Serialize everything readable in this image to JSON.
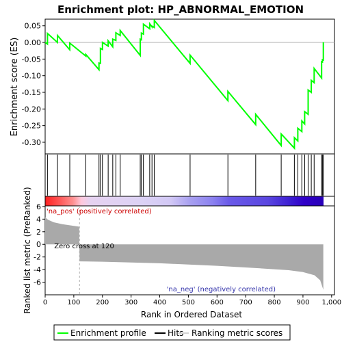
{
  "chart_data": {
    "type": "line",
    "title": "Enrichment plot: HP_ABNORMAL_EMOTION",
    "ylabel_top": "Enrichment score (ES)",
    "ylabel_bottom": "Ranked list metric (PreRanked)",
    "xlabel": "Rank in Ordered Dataset",
    "xlim": [
      0,
      1010
    ],
    "es_ylim": [
      -0.335,
      0.07
    ],
    "metric_ylim": [
      -8,
      6.1
    ],
    "x_ticks": [
      "0",
      "100",
      "200",
      "300",
      "400",
      "500",
      "600",
      "700",
      "800",
      "900",
      "1,000"
    ],
    "x_tick_values": [
      0,
      100,
      200,
      300,
      400,
      500,
      600,
      700,
      800,
      900,
      1000
    ],
    "es_ticks": [
      "0.05",
      "0.00",
      "-0.05",
      "-0.10",
      "-0.15",
      "-0.20",
      "-0.25",
      "-0.30"
    ],
    "es_tick_values": [
      0.05,
      0.0,
      -0.05,
      -0.1,
      -0.15,
      -0.2,
      -0.25,
      -0.3
    ],
    "metric_ticks": [
      "6",
      "4",
      "2",
      "0",
      "-2",
      "-4",
      "-6"
    ],
    "metric_tick_values": [
      6,
      4,
      2,
      0,
      -2,
      -4,
      -6
    ],
    "hits": [
      8,
      43,
      86,
      142,
      188,
      193,
      200,
      220,
      236,
      247,
      262,
      332,
      336,
      343,
      365,
      373,
      381,
      506,
      638,
      735,
      824,
      870,
      882,
      896,
      906,
      918,
      929,
      939,
      965,
      968,
      971
    ],
    "es_profile": [
      {
        "x": 0,
        "es": 0.0
      },
      {
        "x": 8,
        "es": -0.005
      },
      {
        "x": 8,
        "es": 0.027
      },
      {
        "x": 43,
        "es": -0.0
      },
      {
        "x": 43,
        "es": 0.021
      },
      {
        "x": 86,
        "es": -0.022
      },
      {
        "x": 86,
        "es": -0.002
      },
      {
        "x": 142,
        "es": -0.041
      },
      {
        "x": 142,
        "es": -0.036
      },
      {
        "x": 188,
        "es": -0.082
      },
      {
        "x": 188,
        "es": -0.062
      },
      {
        "x": 193,
        "es": -0.063
      },
      {
        "x": 193,
        "es": -0.018
      },
      {
        "x": 200,
        "es": -0.021
      },
      {
        "x": 200,
        "es": 0.0
      },
      {
        "x": 220,
        "es": -0.011
      },
      {
        "x": 220,
        "es": 0.005
      },
      {
        "x": 236,
        "es": -0.013
      },
      {
        "x": 236,
        "es": 0.01
      },
      {
        "x": 247,
        "es": 0.006
      },
      {
        "x": 247,
        "es": 0.029
      },
      {
        "x": 262,
        "es": 0.021
      },
      {
        "x": 262,
        "es": 0.036
      },
      {
        "x": 332,
        "es": -0.039
      },
      {
        "x": 332,
        "es": 0.01
      },
      {
        "x": 336,
        "es": 0.008
      },
      {
        "x": 336,
        "es": 0.028
      },
      {
        "x": 343,
        "es": 0.025
      },
      {
        "x": 343,
        "es": 0.055
      },
      {
        "x": 365,
        "es": 0.041
      },
      {
        "x": 365,
        "es": 0.056
      },
      {
        "x": 373,
        "es": 0.047
      },
      {
        "x": 373,
        "es": 0.049
      },
      {
        "x": 381,
        "es": 0.045
      },
      {
        "x": 381,
        "es": 0.066
      },
      {
        "x": 506,
        "es": -0.063
      },
      {
        "x": 506,
        "es": -0.038
      },
      {
        "x": 638,
        "es": -0.175
      },
      {
        "x": 638,
        "es": -0.147
      },
      {
        "x": 735,
        "es": -0.247
      },
      {
        "x": 735,
        "es": -0.216
      },
      {
        "x": 824,
        "es": -0.31
      },
      {
        "x": 824,
        "es": -0.275
      },
      {
        "x": 870,
        "es": -0.318
      },
      {
        "x": 870,
        "es": -0.286
      },
      {
        "x": 882,
        "es": -0.296
      },
      {
        "x": 882,
        "es": -0.258
      },
      {
        "x": 896,
        "es": -0.268
      },
      {
        "x": 896,
        "es": -0.236
      },
      {
        "x": 906,
        "es": -0.245
      },
      {
        "x": 906,
        "es": -0.208
      },
      {
        "x": 918,
        "es": -0.216
      },
      {
        "x": 918,
        "es": -0.143
      },
      {
        "x": 929,
        "es": -0.15
      },
      {
        "x": 929,
        "es": -0.114
      },
      {
        "x": 939,
        "es": -0.121
      },
      {
        "x": 939,
        "es": -0.078
      },
      {
        "x": 965,
        "es": -0.107
      },
      {
        "x": 965,
        "es": -0.058
      },
      {
        "x": 968,
        "es": -0.059
      },
      {
        "x": 968,
        "es": -0.052
      },
      {
        "x": 971,
        "es": -0.053
      },
      {
        "x": 971,
        "es": 0.001
      }
    ],
    "metric_curve": [
      {
        "x": 0,
        "v": 4.3
      },
      {
        "x": 10,
        "v": 3.9
      },
      {
        "x": 30,
        "v": 3.5
      },
      {
        "x": 60,
        "v": 3.2
      },
      {
        "x": 90,
        "v": 3.0
      },
      {
        "x": 119,
        "v": 2.8
      },
      {
        "x": 120,
        "v": -2.7
      },
      {
        "x": 200,
        "v": -2.75
      },
      {
        "x": 400,
        "v": -3.0
      },
      {
        "x": 600,
        "v": -3.4
      },
      {
        "x": 750,
        "v": -3.8
      },
      {
        "x": 850,
        "v": -4.1
      },
      {
        "x": 900,
        "v": -4.4
      },
      {
        "x": 940,
        "v": -4.9
      },
      {
        "x": 960,
        "v": -5.7
      },
      {
        "x": 971,
        "v": -7.2
      }
    ],
    "zero_cross": 120,
    "n_genes": 971,
    "labels": {
      "pos": "'na_pos' (positively correlated)",
      "neg": "'na_neg' (negatively correlated)",
      "zero": "Zero cross at 120"
    },
    "legend": [
      {
        "label": "Enrichment profile",
        "color": "#00ff00"
      },
      {
        "label": "Hits",
        "color": "#000000"
      },
      {
        "label": "Ranking metric scores",
        "color": "#d3d3d3"
      }
    ],
    "colors": {
      "profile": "#00ff00",
      "pos_label": "#cc0000",
      "neg_label": "#3333aa",
      "metric_fill": "#a9a9a9"
    }
  }
}
